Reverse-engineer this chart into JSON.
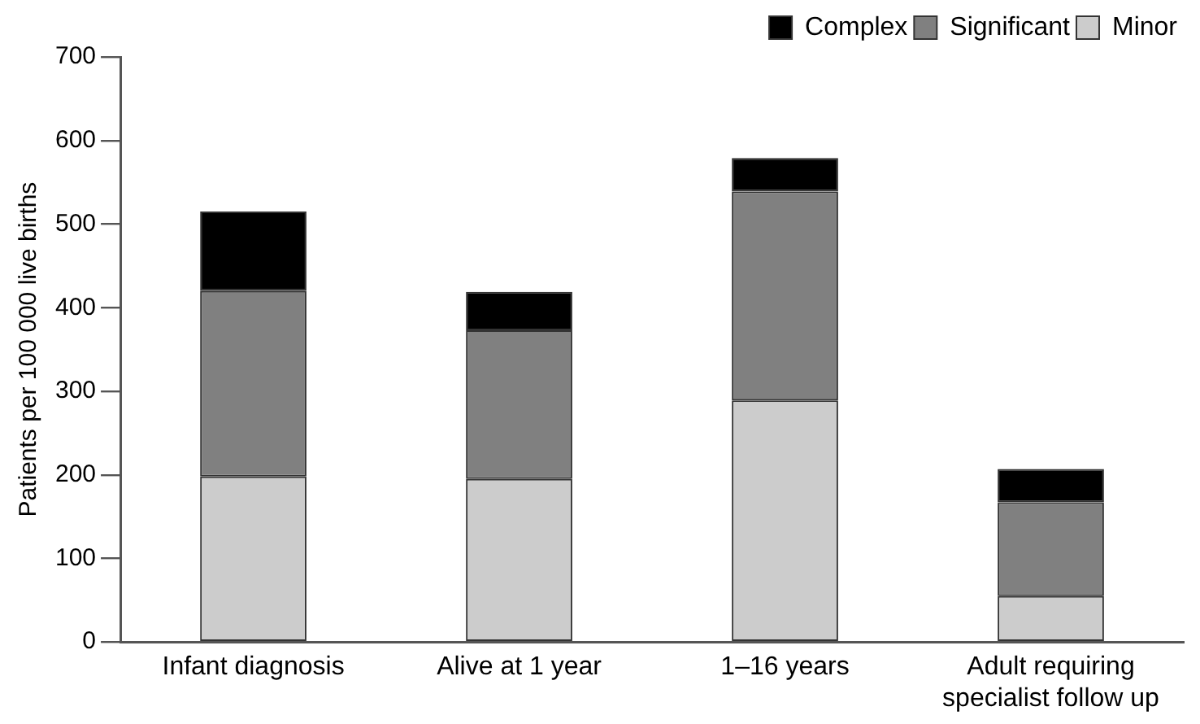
{
  "chart_data": {
    "type": "bar",
    "stacked": true,
    "ylabel": "Patients per 100 000 live births",
    "categories": [
      "Infant diagnosis",
      "Alive at 1 year",
      "1–16 years",
      "Adult requiring specialist follow up"
    ],
    "series": [
      {
        "name": "Minor",
        "color": "#cccccc",
        "values": [
          198,
          195,
          289,
          55
        ]
      },
      {
        "name": "Significant",
        "color": "#808080",
        "values": [
          222,
          178,
          250,
          112
        ]
      },
      {
        "name": "Complex",
        "color": "#000000",
        "values": [
          95,
          46,
          40,
          40
        ]
      }
    ],
    "ylim": [
      0,
      700
    ],
    "yticks": [
      0,
      100,
      200,
      300,
      400,
      500,
      600,
      700
    ],
    "grid": false,
    "legend": "top right"
  }
}
